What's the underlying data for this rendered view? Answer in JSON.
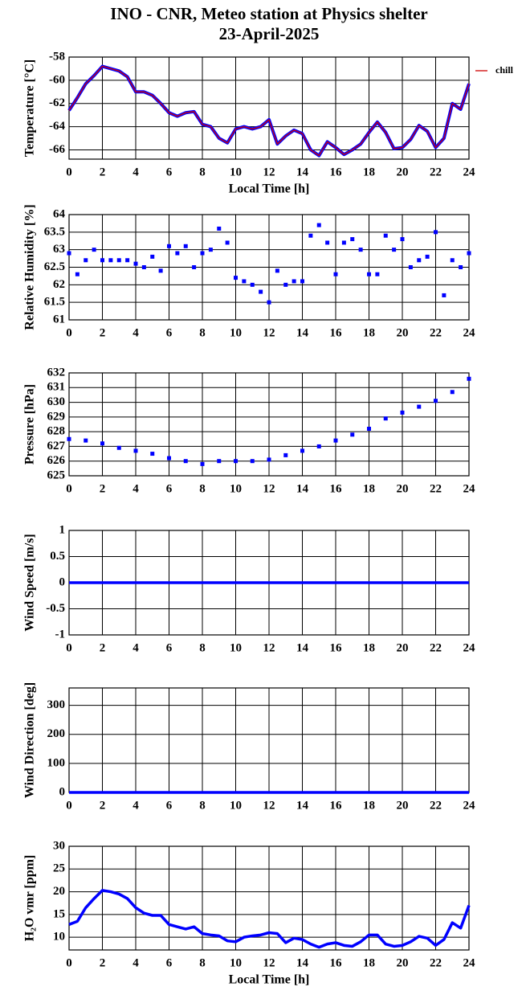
{
  "chart_data": [
    {
      "type": "line",
      "title": "INO - CNR, Meteo station at Physics shelter",
      "subtitle": "23-April-2025",
      "ylabel": "Temperature [°C]",
      "xlabel": "Local Time [h]",
      "xlim": [
        0,
        24
      ],
      "xticks": [
        0,
        2,
        4,
        6,
        8,
        10,
        12,
        14,
        16,
        18,
        20,
        22,
        24
      ],
      "ylim": [
        -66.8,
        -58
      ],
      "yticks": [
        -66,
        -64,
        -62,
        -60,
        -58
      ],
      "grid": true,
      "legend": "outside right",
      "x": [
        0,
        0.5,
        1,
        1.5,
        2,
        2.5,
        3,
        3.5,
        4,
        4.5,
        5,
        5.5,
        6,
        6.5,
        7,
        7.5,
        8,
        8.5,
        9,
        9.5,
        10,
        10.5,
        11,
        11.5,
        12,
        12.5,
        13,
        13.5,
        14,
        14.5,
        15,
        15.5,
        16,
        16.5,
        17,
        17.5,
        18,
        18.5,
        19,
        19.5,
        20,
        20.5,
        21,
        21.5,
        22,
        22.5,
        23,
        23.5,
        24
      ],
      "series": [
        {
          "name": "chill",
          "color": "#d00000",
          "outline_color": "#0000ff",
          "values": [
            -62.6,
            -61.5,
            -60.3,
            -59.6,
            -58.8,
            -59.0,
            -59.2,
            -59.7,
            -61.0,
            -61.0,
            -61.3,
            -62.0,
            -62.8,
            -63.1,
            -62.8,
            -62.7,
            -63.8,
            -64.0,
            -65.0,
            -65.4,
            -64.2,
            -64.0,
            -64.2,
            -64.0,
            -63.4,
            -65.5,
            -64.8,
            -64.3,
            -64.6,
            -66.0,
            -66.5,
            -65.3,
            -65.8,
            -66.4,
            -66.0,
            -65.5,
            -64.5,
            -63.6,
            -64.5,
            -65.9,
            -65.8,
            -65.1,
            -63.9,
            -64.4,
            -65.8,
            -65.0,
            -62.0,
            -62.5,
            -60.3
          ]
        }
      ]
    },
    {
      "type": "line",
      "marker": "square",
      "ylabel": "Relative Humidity [%]",
      "xlim": [
        0,
        24
      ],
      "xticks": [
        0,
        2,
        4,
        6,
        8,
        10,
        12,
        14,
        16,
        18,
        20,
        22,
        24
      ],
      "ylim": [
        61,
        64
      ],
      "yticks": [
        61,
        61.5,
        62,
        62.5,
        63,
        63.5,
        64
      ],
      "grid": true,
      "x": [
        0,
        0.5,
        1,
        1.5,
        2,
        2.5,
        3,
        3.5,
        4,
        4.5,
        5,
        5.5,
        6,
        6.5,
        7,
        7.5,
        8,
        8.5,
        9,
        9.5,
        10,
        10.5,
        11,
        11.5,
        12,
        12.5,
        13,
        13.5,
        14,
        14.5,
        15,
        15.5,
        16,
        16.5,
        17,
        17.5,
        18,
        18.5,
        19,
        19.5,
        20,
        20.5,
        21,
        21.5,
        22,
        22.5,
        23,
        23.5,
        24
      ],
      "series": [
        {
          "color": "#0000ff",
          "values": [
            62.9,
            62.3,
            62.7,
            63.0,
            62.7,
            62.7,
            62.7,
            62.7,
            62.6,
            62.5,
            62.8,
            62.4,
            63.1,
            62.9,
            63.1,
            62.5,
            62.9,
            63.0,
            63.6,
            63.2,
            62.2,
            62.1,
            62.0,
            61.8,
            61.5,
            62.4,
            62.0,
            62.1,
            62.1,
            63.4,
            63.7,
            63.2,
            62.3,
            63.2,
            63.3,
            63.0,
            62.3,
            62.3,
            63.4,
            63.0,
            63.3,
            62.5,
            62.7,
            62.8,
            63.5,
            61.7,
            62.7,
            62.5,
            62.9
          ]
        }
      ]
    },
    {
      "type": "line",
      "marker": "square",
      "ylabel": "Pressure [hPa]",
      "xlim": [
        0,
        24
      ],
      "xticks": [
        0,
        2,
        4,
        6,
        8,
        10,
        12,
        14,
        16,
        18,
        20,
        22,
        24
      ],
      "ylim": [
        625,
        632
      ],
      "yticks": [
        625,
        626,
        627,
        628,
        629,
        630,
        631,
        632
      ],
      "grid": true,
      "x": [
        0,
        1,
        2,
        3,
        4,
        5,
        6,
        7,
        8,
        9,
        10,
        11,
        12,
        13,
        14,
        15,
        16,
        17,
        18,
        19,
        20,
        21,
        22,
        23,
        24
      ],
      "series": [
        {
          "color": "#0000ff",
          "values": [
            627.5,
            627.4,
            627.2,
            626.9,
            626.7,
            626.5,
            626.2,
            626.0,
            625.8,
            626.0,
            626.0,
            626.0,
            626.1,
            626.4,
            626.7,
            627.0,
            627.4,
            627.8,
            628.2,
            628.9,
            629.3,
            629.7,
            630.1,
            630.7,
            631.6
          ]
        }
      ]
    },
    {
      "type": "line",
      "ylabel": "Wind Speed [m/s]",
      "xlim": [
        0,
        24
      ],
      "xticks": [
        0,
        2,
        4,
        6,
        8,
        10,
        12,
        14,
        16,
        18,
        20,
        22,
        24
      ],
      "ylim": [
        -1,
        1
      ],
      "yticks": [
        -1,
        -0.5,
        0,
        0.5,
        1
      ],
      "grid": true,
      "x": [
        0,
        2,
        4,
        6,
        8,
        10,
        12,
        14,
        16,
        18,
        20,
        22,
        24
      ],
      "series": [
        {
          "color": "#0000ff",
          "values": [
            0,
            0,
            0,
            0,
            0,
            0,
            0,
            0,
            0,
            0,
            0,
            0,
            0
          ]
        }
      ]
    },
    {
      "type": "line",
      "ylabel": "Wind Direction [deg]",
      "xlim": [
        0,
        24
      ],
      "xticks": [
        0,
        2,
        4,
        6,
        8,
        10,
        12,
        14,
        16,
        18,
        20,
        22,
        24
      ],
      "ylim": [
        0,
        360
      ],
      "yticks": [
        0,
        100,
        200,
        300
      ],
      "grid": true,
      "x": [
        0,
        2,
        4,
        6,
        8,
        10,
        12,
        14,
        16,
        18,
        20,
        22,
        24
      ],
      "series": [
        {
          "color": "#0000ff",
          "values": [
            0,
            0,
            0,
            0,
            0,
            0,
            0,
            0,
            0,
            0,
            0,
            0,
            0
          ]
        }
      ]
    },
    {
      "type": "line",
      "ylabel": "H₂O vmr [ppm]",
      "xlabel": "Local Time [h]",
      "xlim": [
        0,
        24
      ],
      "xticks": [
        0,
        2,
        4,
        6,
        8,
        10,
        12,
        14,
        16,
        18,
        20,
        22,
        24
      ],
      "ylim": [
        7.2,
        30
      ],
      "yticks": [
        10,
        15,
        20,
        25,
        30
      ],
      "grid": true,
      "x": [
        0,
        0.5,
        1,
        1.5,
        2,
        2.5,
        3,
        3.5,
        4,
        4.5,
        5,
        5.5,
        6,
        6.5,
        7,
        7.5,
        8,
        8.5,
        9,
        9.5,
        10,
        10.5,
        11,
        11.5,
        12,
        12.5,
        13,
        13.5,
        14,
        14.5,
        15,
        15.5,
        16,
        16.5,
        17,
        17.5,
        18,
        18.5,
        19,
        19.5,
        20,
        20.5,
        21,
        21.5,
        22,
        22.5,
        23,
        23.5,
        24
      ],
      "series": [
        {
          "color": "#0000ff",
          "values": [
            12.8,
            13.5,
            16.5,
            18.5,
            20.3,
            20.0,
            19.5,
            18.5,
            16.5,
            15.3,
            14.8,
            14.8,
            12.8,
            12.3,
            11.8,
            12.3,
            10.8,
            10.5,
            10.3,
            9.2,
            9.0,
            10.0,
            10.3,
            10.5,
            11.0,
            10.8,
            8.8,
            9.8,
            9.5,
            8.5,
            7.8,
            8.5,
            8.8,
            8.2,
            8.0,
            9.0,
            10.5,
            10.5,
            8.5,
            8.0,
            8.2,
            9.0,
            10.2,
            9.8,
            8.2,
            9.5,
            13.2,
            12.0,
            17.0
          ]
        }
      ]
    }
  ]
}
